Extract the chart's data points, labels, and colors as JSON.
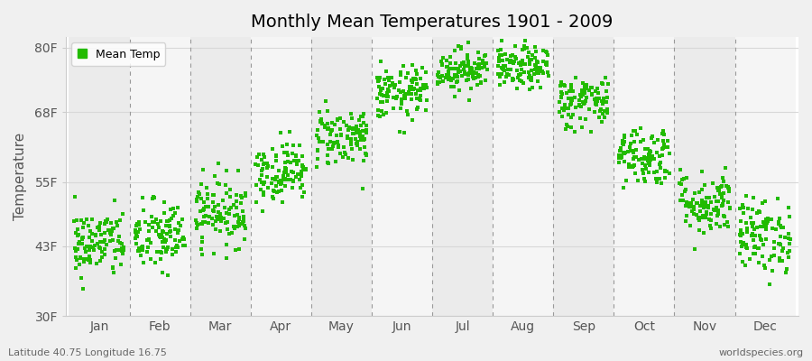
{
  "title": "Monthly Mean Temperatures 1901 - 2009",
  "ylabel": "Temperature",
  "xlabel_bottom_left": "Latitude 40.75 Longitude 16.75",
  "xlabel_bottom_right": "worldspecies.org",
  "background_color": "#f0f0f0",
  "plot_bg_color": "#ffffff",
  "band_color_odd": "#ebebeb",
  "band_color_even": "#f5f5f5",
  "dot_color": "#22bb00",
  "dot_size": 5,
  "ylim": [
    30,
    82
  ],
  "yticks": [
    30,
    43,
    55,
    68,
    80
  ],
  "ytick_labels": [
    "30F",
    "43F",
    "55F",
    "68F",
    "80F"
  ],
  "months": [
    "Jan",
    "Feb",
    "Mar",
    "Apr",
    "May",
    "Jun",
    "Jul",
    "Aug",
    "Sep",
    "Oct",
    "Nov",
    "Dec"
  ],
  "monthly_means_F": [
    43.5,
    44.8,
    49.5,
    57.0,
    63.5,
    71.5,
    76.0,
    76.2,
    70.0,
    60.0,
    51.0,
    45.0
  ],
  "monthly_std_F": [
    3.2,
    3.4,
    3.2,
    2.8,
    2.8,
    2.5,
    2.0,
    2.0,
    2.5,
    2.8,
    3.0,
    3.5
  ],
  "n_years": 109,
  "seed": 42,
  "dashed_line_color": "#999999",
  "hgrid_color": "#d8d8d8",
  "title_fontsize": 14,
  "axis_label_fontsize": 10,
  "tick_label_fontsize": 10,
  "ylabel_fontsize": 11
}
